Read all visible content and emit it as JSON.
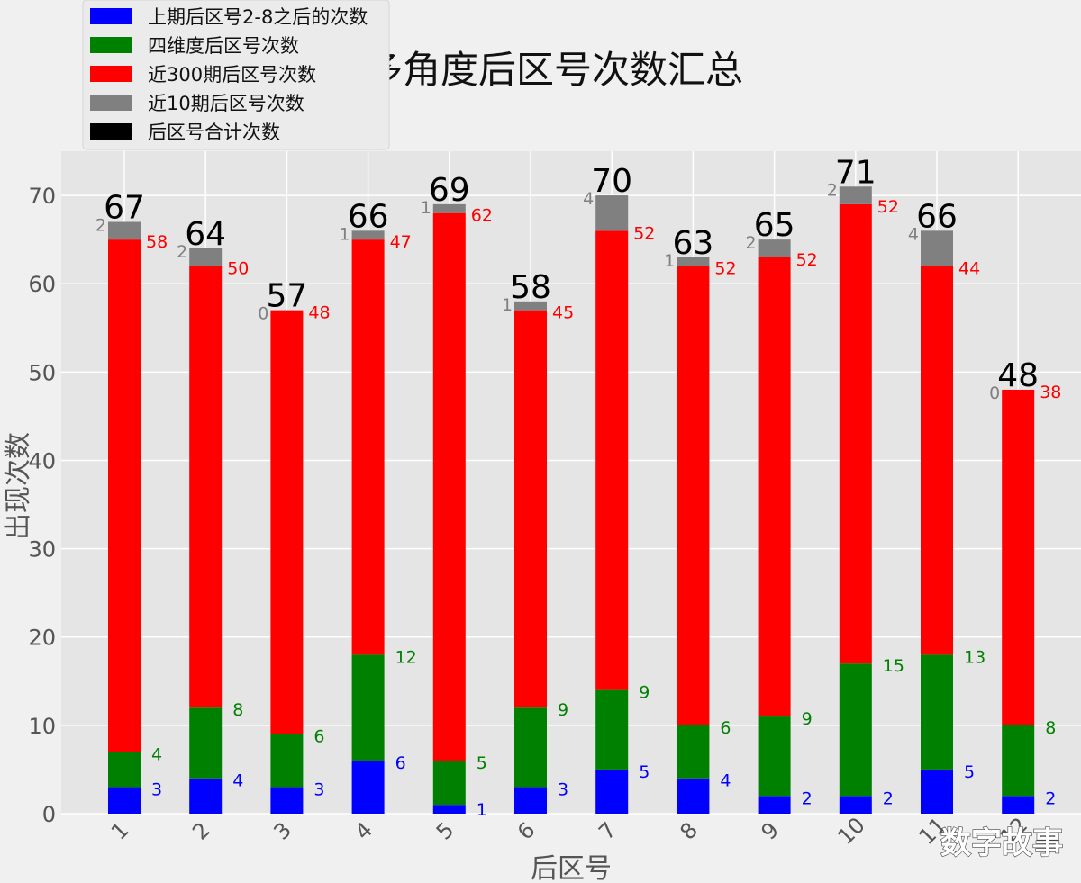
{
  "colors": {
    "background": "#f0f0f0",
    "plot_background": "#e5e5e5",
    "grid": "#ffffff",
    "blue": "#0000ff",
    "green": "#008000",
    "red": "#ff0000",
    "gray": "#808080",
    "black": "#000000"
  },
  "watermark": "数字故事",
  "chart_data": {
    "type": "bar",
    "stacked": true,
    "title": "多角度后区号次数汇总",
    "xlabel": "后区号",
    "ylabel": "出现次数",
    "categories": [
      "1",
      "2",
      "3",
      "4",
      "5",
      "6",
      "7",
      "8",
      "9",
      "10",
      "11",
      "12"
    ],
    "ylim": [
      0,
      75
    ],
    "yticks": [
      0,
      10,
      20,
      30,
      40,
      50,
      60,
      70
    ],
    "grid": true,
    "legend_position": "top-left",
    "series": [
      {
        "name": "上期后区号2-8之后的次数",
        "color": "#0000ff",
        "values": [
          3,
          4,
          3,
          6,
          1,
          3,
          5,
          4,
          2,
          2,
          5,
          2
        ]
      },
      {
        "name": "四维度后区号次数",
        "color": "#008000",
        "values": [
          4,
          8,
          6,
          12,
          5,
          9,
          9,
          6,
          9,
          15,
          13,
          8
        ]
      },
      {
        "name": "近300期后区号次数",
        "color": "#ff0000",
        "values": [
          58,
          50,
          48,
          47,
          62,
          45,
          52,
          52,
          52,
          52,
          44,
          38
        ]
      },
      {
        "name": "近10期后区号次数",
        "color": "#808080",
        "values": [
          2,
          2,
          0,
          1,
          1,
          1,
          4,
          1,
          2,
          2,
          4,
          0
        ]
      }
    ],
    "totals_series": {
      "name": "后区号合计次数",
      "color": "#000000",
      "values": [
        67,
        64,
        57,
        66,
        69,
        58,
        70,
        63,
        65,
        71,
        66,
        48
      ]
    }
  }
}
